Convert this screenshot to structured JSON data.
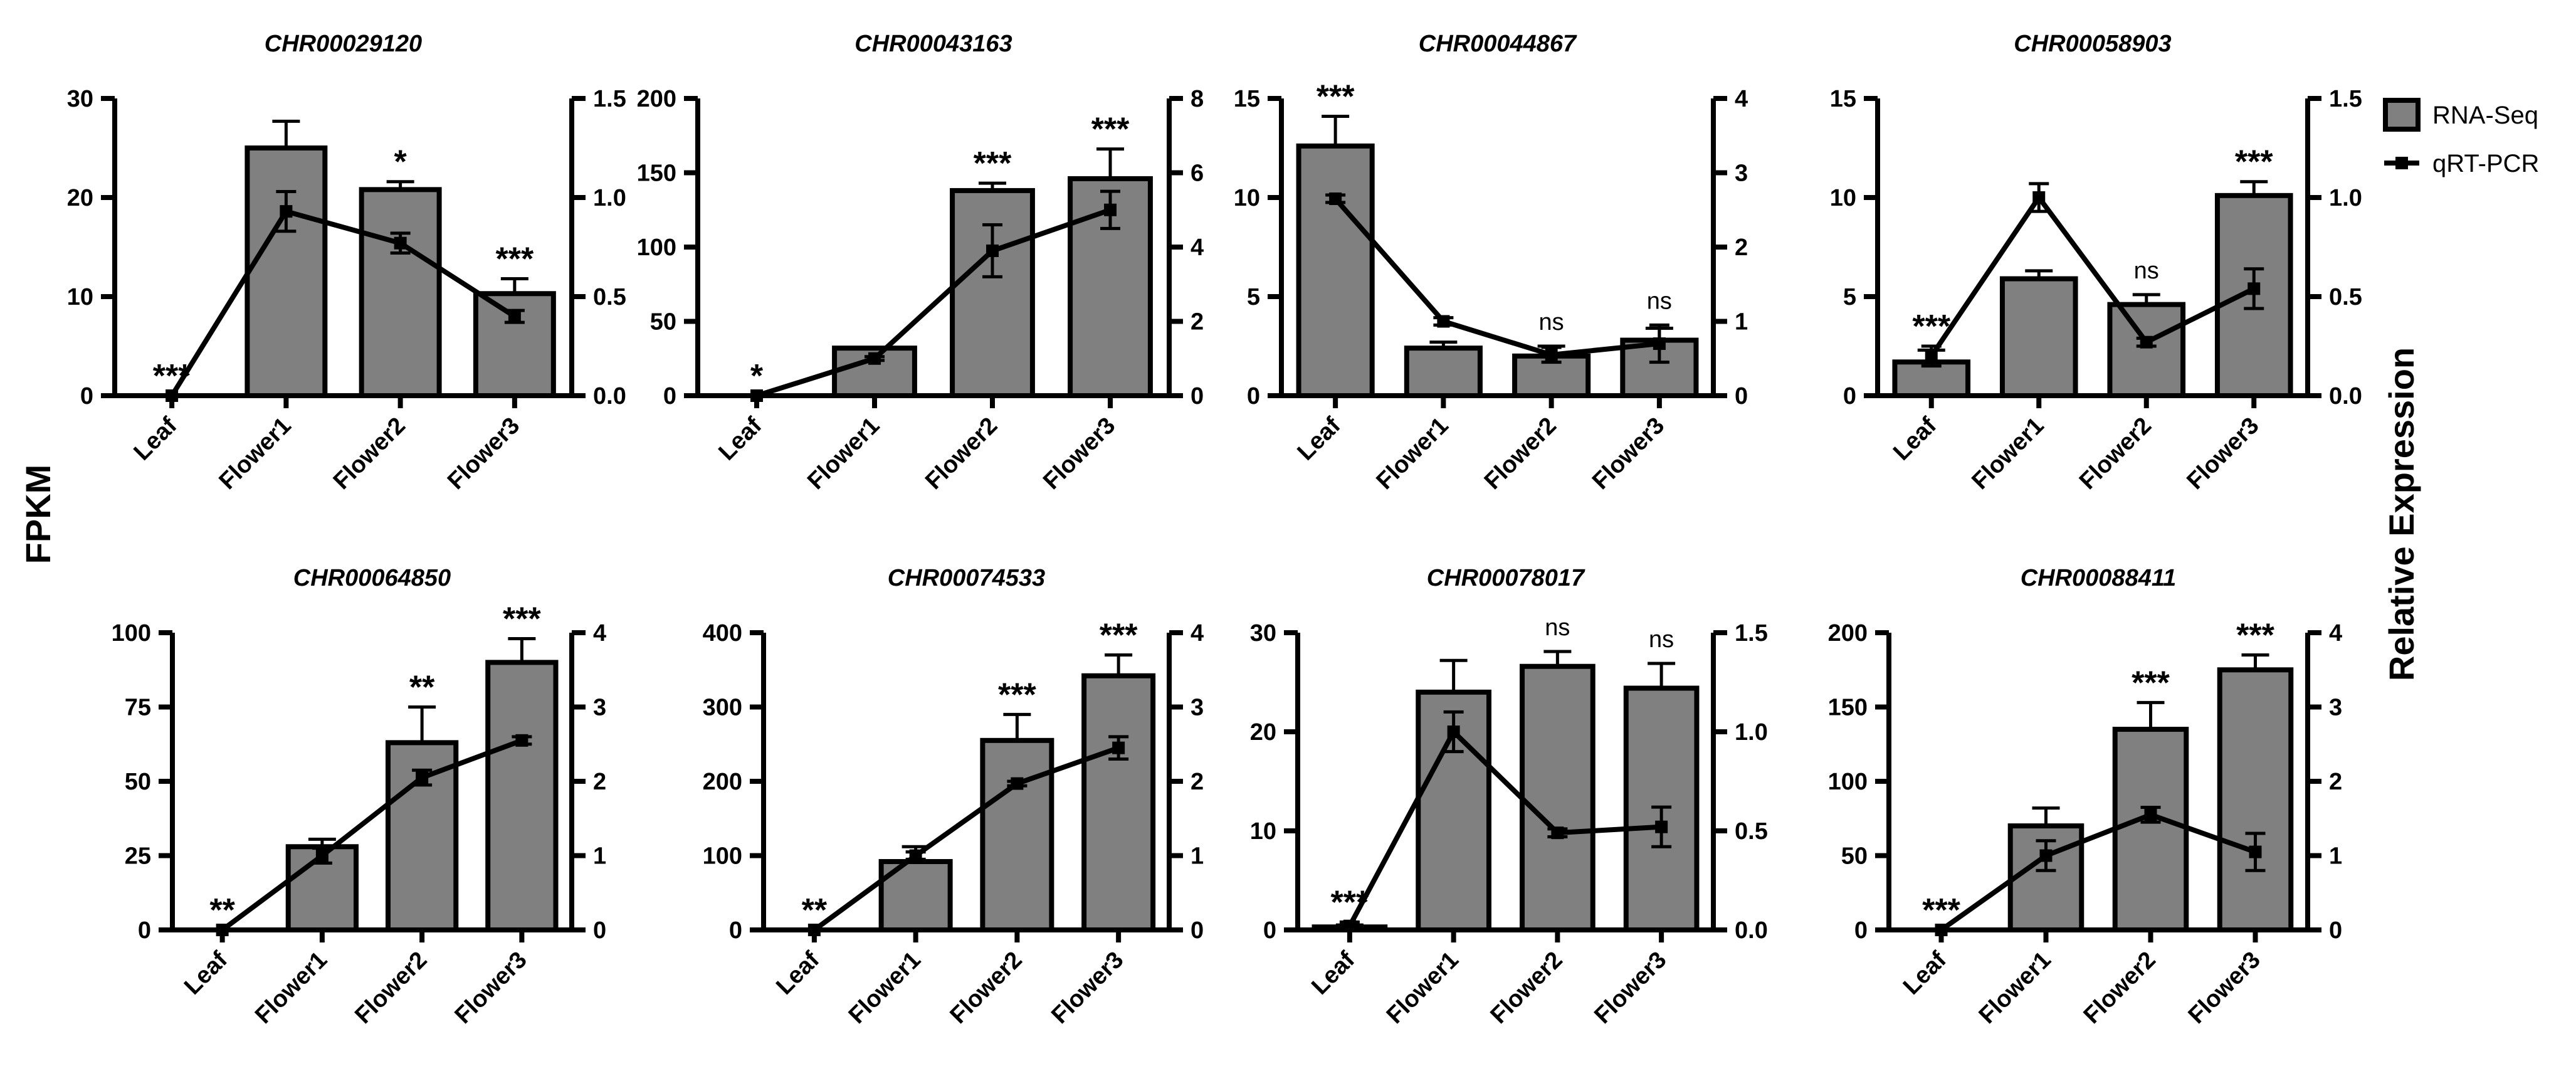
{
  "ylabel": "FPKM",
  "y2label": "Relative Expression",
  "legend": [
    "RNA-Seq",
    "qRT-PCR"
  ],
  "chart_data": [
    {
      "type": "bar",
      "title": "CHR00029120",
      "categories": [
        "Leaf",
        "Flower1",
        "Flower2",
        "Flower3"
      ],
      "series": [
        {
          "color": "#808080",
          "values": [
            0,
            25,
            20.8,
            10.3
          ],
          "errors": [
            0,
            2.7,
            0.8,
            1.5
          ]
        },
        {
          "color": "#000000",
          "axis": "y2",
          "values": [
            0,
            0.93,
            0.77,
            0.4
          ],
          "errors": [
            0,
            0.1,
            0.05,
            0.03
          ]
        }
      ],
      "annotations": [
        "***",
        null,
        "*",
        "***"
      ],
      "ylim": [
        0,
        30
      ],
      "yticks": [
        0,
        10,
        20,
        30
      ],
      "y2lim": [
        0,
        1.5
      ],
      "y2ticks": [
        {
          "value": 0,
          "label": "0.0"
        },
        0.5,
        {
          "value": 1,
          "label": "1.0"
        },
        1.5
      ]
    },
    {
      "type": "bar",
      "title": "CHR00043163",
      "categories": [
        "Leaf",
        "Flower1",
        "Flower2",
        "Flower3"
      ],
      "series": [
        {
          "color": "#808080",
          "values": [
            0,
            32,
            138,
            146
          ],
          "errors": [
            0,
            0,
            5,
            20
          ]
        },
        {
          "color": "#000000",
          "axis": "y2",
          "values": [
            0,
            1.0,
            3.9,
            5.0
          ],
          "errors": [
            0,
            0.05,
            0.7,
            0.5
          ]
        }
      ],
      "annotations": [
        "*",
        null,
        "***",
        "***"
      ],
      "ylim": [
        0,
        200
      ],
      "yticks": [
        0,
        50,
        100,
        150,
        200
      ],
      "y2lim": [
        0,
        8
      ],
      "y2ticks": [
        0,
        2,
        4,
        6,
        8
      ]
    },
    {
      "type": "bar",
      "title": "CHR00044867",
      "categories": [
        "Leaf",
        "Flower1",
        "Flower2",
        "Flower3"
      ],
      "series": [
        {
          "color": "#808080",
          "values": [
            12.6,
            2.4,
            2.0,
            2.8
          ],
          "errors": [
            1.5,
            0.3,
            0.5,
            0.6
          ]
        },
        {
          "color": "#000000",
          "axis": "y2",
          "values": [
            2.65,
            1.0,
            0.55,
            0.7
          ],
          "errors": [
            0.05,
            0.05,
            0.1,
            0.25
          ]
        }
      ],
      "annotations": [
        "***",
        null,
        "ns",
        "ns"
      ],
      "ylim": [
        0,
        15
      ],
      "yticks": [
        0,
        5,
        10,
        15
      ],
      "y2lim": [
        0,
        4
      ],
      "y2ticks": [
        0,
        1,
        2,
        3,
        4
      ]
    },
    {
      "type": "bar",
      "title": "CHR00058903",
      "categories": [
        "Leaf",
        "Flower1",
        "Flower2",
        "Flower3"
      ],
      "series": [
        {
          "color": "#808080",
          "values": [
            1.7,
            5.9,
            4.6,
            10.1
          ],
          "errors": [
            0.6,
            0.4,
            0.5,
            0.7
          ]
        },
        {
          "color": "#000000",
          "axis": "y2",
          "values": [
            0.2,
            1.0,
            0.27,
            0.54
          ],
          "errors": [
            0.05,
            0.07,
            0.02,
            0.1
          ]
        }
      ],
      "annotations": [
        "***",
        null,
        "ns",
        "***"
      ],
      "ylim": [
        0,
        15
      ],
      "yticks": [
        0,
        5,
        10,
        15
      ],
      "y2lim": [
        0,
        1.5
      ],
      "y2ticks": [
        {
          "value": 0,
          "label": "0.0"
        },
        0.5,
        {
          "value": 1,
          "label": "1.0"
        },
        1.5
      ]
    },
    {
      "type": "bar",
      "title": "CHR00064850",
      "categories": [
        "Leaf",
        "Flower1",
        "Flower2",
        "Flower3"
      ],
      "series": [
        {
          "color": "#808080",
          "values": [
            0,
            28,
            63,
            90
          ],
          "errors": [
            0,
            2.5,
            12,
            8
          ]
        },
        {
          "color": "#000000",
          "axis": "y2",
          "values": [
            0,
            1.0,
            2.05,
            2.55
          ],
          "errors": [
            0,
            0.1,
            0.1,
            0.05
          ]
        }
      ],
      "annotations": [
        "**",
        null,
        "**",
        "***"
      ],
      "ylim": [
        0,
        100
      ],
      "yticks": [
        0,
        25,
        50,
        75,
        100
      ],
      "y2lim": [
        0,
        4
      ],
      "y2ticks": [
        0,
        1,
        2,
        3,
        4
      ]
    },
    {
      "type": "bar",
      "title": "CHR00074533",
      "categories": [
        "Leaf",
        "Flower1",
        "Flower2",
        "Flower3"
      ],
      "series": [
        {
          "color": "#808080",
          "values": [
            0,
            92,
            255,
            342
          ],
          "errors": [
            0,
            20,
            35,
            28
          ]
        },
        {
          "color": "#000000",
          "axis": "y2",
          "values": [
            0,
            1.0,
            1.97,
            2.45
          ],
          "errors": [
            0,
            0.05,
            0.03,
            0.15
          ]
        }
      ],
      "annotations": [
        "**",
        null,
        "***",
        "***"
      ],
      "ylim": [
        0,
        400
      ],
      "yticks": [
        0,
        100,
        200,
        300,
        400
      ],
      "y2lim": [
        0,
        4
      ],
      "y2ticks": [
        0,
        1,
        2,
        3,
        4
      ]
    },
    {
      "type": "bar",
      "title": "CHR00078017",
      "categories": [
        "Leaf",
        "Flower1",
        "Flower2",
        "Flower3"
      ],
      "series": [
        {
          "color": "#808080",
          "values": [
            0.3,
            24,
            26.6,
            24.4
          ],
          "errors": [
            0.2,
            3.2,
            1.5,
            2.5
          ]
        },
        {
          "color": "#000000",
          "axis": "y2",
          "values": [
            0.02,
            1.0,
            0.49,
            0.52
          ],
          "errors": [
            0.02,
            0.1,
            0.02,
            0.1
          ]
        }
      ],
      "annotations": [
        "***",
        null,
        "ns",
        "ns"
      ],
      "ylim": [
        0,
        30
      ],
      "yticks": [
        0,
        10,
        20,
        30
      ],
      "y2lim": [
        0,
        1.5
      ],
      "y2ticks": [
        {
          "value": 0,
          "label": "0.0"
        },
        0.5,
        {
          "value": 1,
          "label": "1.0"
        },
        1.5
      ]
    },
    {
      "type": "bar",
      "title": "CHR00088411",
      "categories": [
        "Leaf",
        "Flower1",
        "Flower2",
        "Flower3"
      ],
      "series": [
        {
          "color": "#808080",
          "values": [
            0,
            70,
            135,
            175
          ],
          "errors": [
            0,
            12,
            18,
            10
          ]
        },
        {
          "color": "#000000",
          "axis": "y2",
          "values": [
            0,
            1.0,
            1.55,
            1.05
          ],
          "errors": [
            0,
            0.2,
            0.1,
            0.25
          ]
        }
      ],
      "annotations": [
        "***",
        null,
        "***",
        "***"
      ],
      "ylim": [
        0,
        200
      ],
      "yticks": [
        0,
        50,
        100,
        150,
        200
      ],
      "y2lim": [
        0,
        4
      ],
      "y2ticks": [
        0,
        1,
        2,
        3,
        4
      ]
    }
  ]
}
